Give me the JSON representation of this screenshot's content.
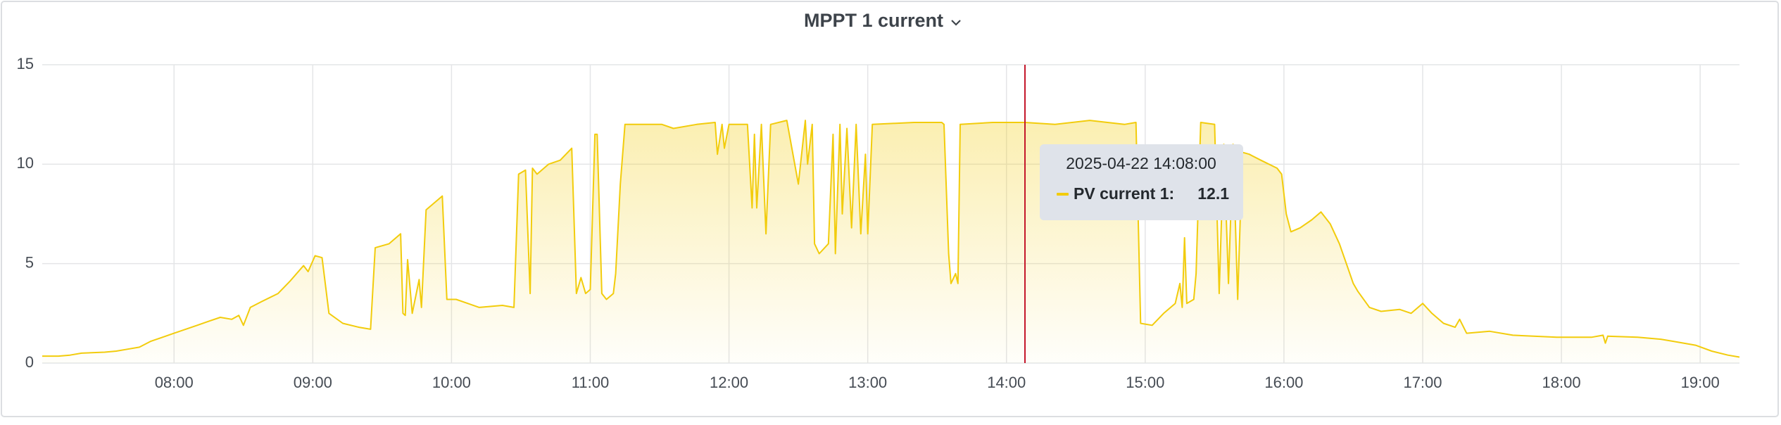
{
  "chart_data": {
    "type": "line",
    "title": "MPPT 1 current",
    "x": [
      "07:03",
      "07:10",
      "07:15",
      "07:20",
      "07:30",
      "07:35",
      "07:40",
      "07:45",
      "07:50",
      "07:55",
      "08:00",
      "08:05",
      "08:10",
      "08:15",
      "08:20",
      "08:25",
      "08:28",
      "08:30",
      "08:33",
      "08:38",
      "08:45",
      "08:50",
      "08:56",
      "08:58",
      "09:01",
      "09:04",
      "09:07",
      "09:13",
      "09:20",
      "09:25",
      "09:27",
      "09:33",
      "09:38",
      "09:39",
      "09:40",
      "09:41",
      "09:43",
      "09:46",
      "09:47",
      "09:49",
      "09:52",
      "09:56",
      "09:58",
      "10:02",
      "10:07",
      "10:12",
      "10:22",
      "10:27",
      "10:29",
      "10:32",
      "10:34",
      "10:35",
      "10:37",
      "10:42",
      "10:47",
      "10:52",
      "10:54",
      "10:56",
      "10:58",
      "11:00",
      "11:02",
      "11:03",
      "11:05",
      "11:07",
      "11:10",
      "11:11",
      "11:13",
      "11:15",
      "11:31",
      "11:36",
      "11:46",
      "11:54",
      "11:55",
      "11:57",
      "11:58",
      "12:00",
      "12:08",
      "12:10",
      "12:11",
      "12:12",
      "12:14",
      "12:16",
      "12:18",
      "12:25",
      "12:30",
      "12:33",
      "12:34",
      "12:36",
      "12:37",
      "12:39",
      "12:43",
      "12:45",
      "12:46",
      "12:48",
      "12:49",
      "12:51",
      "12:53",
      "12:55",
      "12:57",
      "12:59",
      "13:00",
      "13:02",
      "13:20",
      "13:32",
      "13:33",
      "13:35",
      "13:36",
      "13:38",
      "13:39",
      "13:40",
      "13:54",
      "14:08",
      "14:21",
      "14:36",
      "14:51",
      "14:56",
      "14:58",
      "15:03",
      "15:08",
      "15:13",
      "15:15",
      "15:16",
      "15:17",
      "15:18",
      "15:21",
      "15:22",
      "15:24",
      "15:30",
      "15:32",
      "15:34",
      "15:36",
      "15:38",
      "15:40",
      "15:42",
      "15:45",
      "15:50",
      "15:57",
      "15:59",
      "16:01",
      "16:03",
      "16:07",
      "16:12",
      "16:16",
      "16:20",
      "16:24",
      "16:27",
      "16:30",
      "16:32",
      "16:37",
      "16:42",
      "16:50",
      "16:55",
      "17:00",
      "17:04",
      "17:09",
      "17:14",
      "17:16",
      "17:19",
      "17:29",
      "17:39",
      "17:58",
      "18:13",
      "18:18",
      "18:19",
      "18:20",
      "18:33",
      "18:43",
      "18:48",
      "18:58",
      "19:05",
      "19:12",
      "19:17"
    ],
    "series": [
      {
        "color": "#f2cc0c",
        "values": [
          0.35,
          0.35,
          0.4,
          0.5,
          0.55,
          0.6,
          0.7,
          0.8,
          1.1,
          1.3,
          1.5,
          1.7,
          1.9,
          2.1,
          2.3,
          2.2,
          2.4,
          1.9,
          2.8,
          3.1,
          3.5,
          4.1,
          4.9,
          4.6,
          5.4,
          5.3,
          2.5,
          2.0,
          1.8,
          1.7,
          5.8,
          6.0,
          6.5,
          2.5,
          2.4,
          5.2,
          2.5,
          4.2,
          2.8,
          7.7,
          8.0,
          8.4,
          3.2,
          3.2,
          3.0,
          2.8,
          2.9,
          2.8,
          9.5,
          9.7,
          3.5,
          9.8,
          9.5,
          10.0,
          10.2,
          10.8,
          3.5,
          4.3,
          3.5,
          3.7,
          11.5,
          11.5,
          3.5,
          3.2,
          3.5,
          4.5,
          9.0,
          12.0,
          12.0,
          11.8,
          12.0,
          12.1,
          10.5,
          12.0,
          10.8,
          12.0,
          12.0,
          7.8,
          11.5,
          7.8,
          12.0,
          6.5,
          12.0,
          12.2,
          9.0,
          12.2,
          10.0,
          12.0,
          6.0,
          5.5,
          6.0,
          11.5,
          5.5,
          12.0,
          7.5,
          11.8,
          6.8,
          12.0,
          6.5,
          10.5,
          6.5,
          12.0,
          12.1,
          12.1,
          12.0,
          5.5,
          4.0,
          4.5,
          4.0,
          12.0,
          12.1,
          12.1,
          12.0,
          12.2,
          12.0,
          12.1,
          2.0,
          1.9,
          2.5,
          3.0,
          4.0,
          2.8,
          6.3,
          3.0,
          3.2,
          4.5,
          12.1,
          12.0,
          3.5,
          11.0,
          4.0,
          11.0,
          3.2,
          10.6,
          10.5,
          10.2,
          9.8,
          9.5,
          7.5,
          6.6,
          6.8,
          7.2,
          7.6,
          7.0,
          6.0,
          5.0,
          4.0,
          3.6,
          2.8,
          2.6,
          2.7,
          2.5,
          3.0,
          2.5,
          2.0,
          1.8,
          2.2,
          1.5,
          1.6,
          1.4,
          1.3,
          1.3,
          1.4,
          1.0,
          1.35,
          1.3,
          1.2,
          1.1,
          0.9,
          0.6,
          0.4,
          0.3
        ]
      }
    ],
    "xlim": [
      "07:03",
      "19:17"
    ],
    "xticks": [
      "08:00",
      "09:00",
      "10:00",
      "11:00",
      "12:00",
      "13:00",
      "14:00",
      "15:00",
      "16:00",
      "17:00",
      "18:00",
      "19:00"
    ],
    "ylim": [
      0,
      15
    ],
    "yticks": [
      0,
      5,
      10,
      15
    ],
    "grid": true,
    "fill": true,
    "cursor_color": "#c4162a",
    "tooltip": {
      "time": "2025-04-22 14:08:00",
      "label": "PV current 1:",
      "value": 12.1
    }
  }
}
